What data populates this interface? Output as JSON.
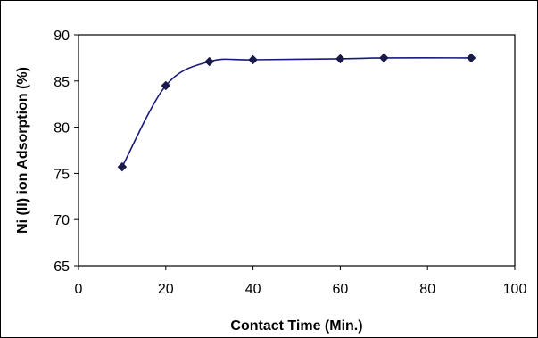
{
  "chart_data": {
    "type": "line",
    "title": "",
    "xlabel": "Contact Time (Min.)",
    "ylabel": "Ni (II) ion Adsorption (%)",
    "xlim": [
      0,
      100
    ],
    "ylim": [
      65,
      90
    ],
    "xticks": [
      0,
      20,
      40,
      60,
      80,
      100
    ],
    "yticks": [
      65,
      70,
      75,
      80,
      85,
      90
    ],
    "grid": false,
    "legend": "none",
    "series": [
      {
        "x": [
          10,
          20,
          30,
          40,
          60,
          70,
          90
        ],
        "y": [
          75.7,
          84.5,
          87.1,
          87.3,
          87.4,
          87.5,
          87.5
        ],
        "line_color": "#1a1a7a",
        "marker": "diamond",
        "marker_color": "#1a1a4a",
        "smooth": true
      }
    ]
  }
}
